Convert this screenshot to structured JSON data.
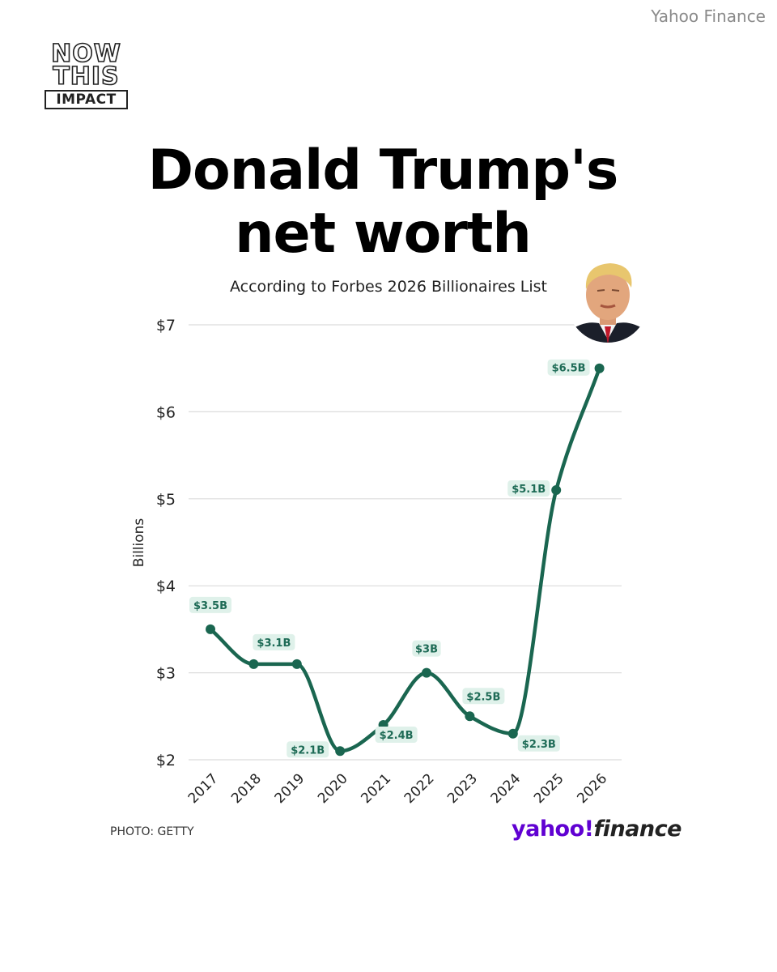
{
  "source_credit": "Yahoo Finance",
  "logo": {
    "line1": "NOW",
    "line2": "THIS",
    "line3": "IMPACT"
  },
  "headline": {
    "line1": "Donald Trump's",
    "line2": "net worth"
  },
  "subtitle": "According to Forbes 2026 Billionaires List",
  "photo_credit": "PHOTO: GETTY",
  "brand": {
    "yahoo": "yahoo!",
    "finance": "finance"
  },
  "colors": {
    "line": "#1a6650",
    "label_bg": "#dff1ea",
    "label_text": "#1e6b56",
    "grid": "#dcdcdc",
    "brand_purple": "#6001d2"
  },
  "chart_data": {
    "type": "line",
    "title": "Donald Trump's net worth",
    "subtitle": "According to Forbes 2026 Billionaires List",
    "xlabel": "",
    "ylabel": "Billions",
    "categories": [
      "2017",
      "2018",
      "2019",
      "2020",
      "2021",
      "2022",
      "2023",
      "2024",
      "2025",
      "2026"
    ],
    "values": [
      3.5,
      3.1,
      3.1,
      2.1,
      2.4,
      3.0,
      2.5,
      2.3,
      5.1,
      6.5
    ],
    "data_labels": [
      "$3.5B",
      "$3.1B",
      "$3.1B",
      "$2.1B",
      "$2.4B",
      "$3B",
      "$2.5B",
      "$2.3B",
      "$5.1B",
      "$6.5B"
    ],
    "label_positions": [
      "above",
      "above",
      "hidden",
      "left",
      "below",
      "above",
      "above",
      "below",
      "left",
      "left"
    ],
    "y_ticks": [
      2,
      3,
      4,
      5,
      6,
      7
    ],
    "y_tick_labels": [
      "$2",
      "$3",
      "$4",
      "$5",
      "$6",
      "$7"
    ],
    "ylim": [
      2,
      7
    ],
    "grid": true,
    "smooth": true
  }
}
